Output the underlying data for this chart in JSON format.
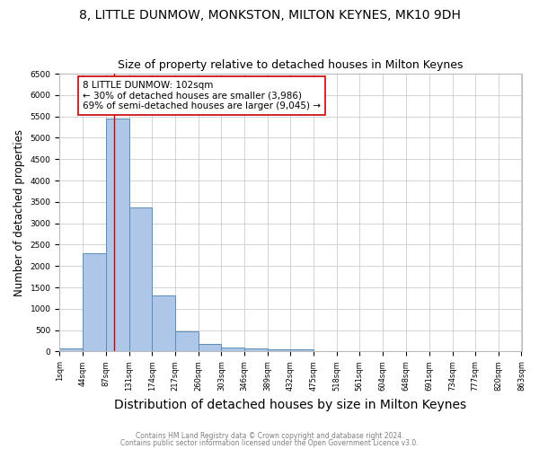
{
  "title1": "8, LITTLE DUNMOW, MONKSTON, MILTON KEYNES, MK10 9DH",
  "title2": "Size of property relative to detached houses in Milton Keynes",
  "xlabel": "Distribution of detached houses by size in Milton Keynes",
  "ylabel": "Number of detached properties",
  "footnote1": "Contains HM Land Registry data © Crown copyright and database right 2024.",
  "footnote2": "Contains public sector information licensed under the Open Government Licence v3.0.",
  "bar_edges": [
    1,
    44,
    87,
    131,
    174,
    217,
    260,
    303,
    346,
    389,
    432,
    475,
    518,
    561,
    604,
    648,
    691,
    734,
    777,
    820,
    863
  ],
  "bar_heights": [
    75,
    2300,
    5450,
    3380,
    1310,
    470,
    185,
    95,
    75,
    50,
    60,
    0,
    0,
    0,
    0,
    0,
    0,
    0,
    0,
    0
  ],
  "bar_color": "#aec6e8",
  "bar_edgecolor": "#5b8db8",
  "property_size": 102,
  "vline_color": "#cc0000",
  "annotation_text": "8 LITTLE DUNMOW: 102sqm\n← 30% of detached houses are smaller (3,986)\n69% of semi-detached houses are larger (9,045) →",
  "annotation_box_edgecolor": "#cc0000",
  "annotation_box_facecolor": "#ffffff",
  "ylim": [
    0,
    6500
  ],
  "background_color": "#ffffff",
  "grid_color": "#cccccc",
  "title1_fontsize": 10,
  "title2_fontsize": 9,
  "xlabel_fontsize": 10,
  "ylabel_fontsize": 8.5,
  "annot_fontsize": 7.5,
  "tick_fontsize": 6,
  "footnote_fontsize": 5.5,
  "tick_labels": [
    "1sqm",
    "44sqm",
    "87sqm",
    "131sqm",
    "174sqm",
    "217sqm",
    "260sqm",
    "303sqm",
    "346sqm",
    "389sqm",
    "432sqm",
    "475sqm",
    "518sqm",
    "561sqm",
    "604sqm",
    "648sqm",
    "691sqm",
    "734sqm",
    "777sqm",
    "820sqm",
    "863sqm"
  ]
}
